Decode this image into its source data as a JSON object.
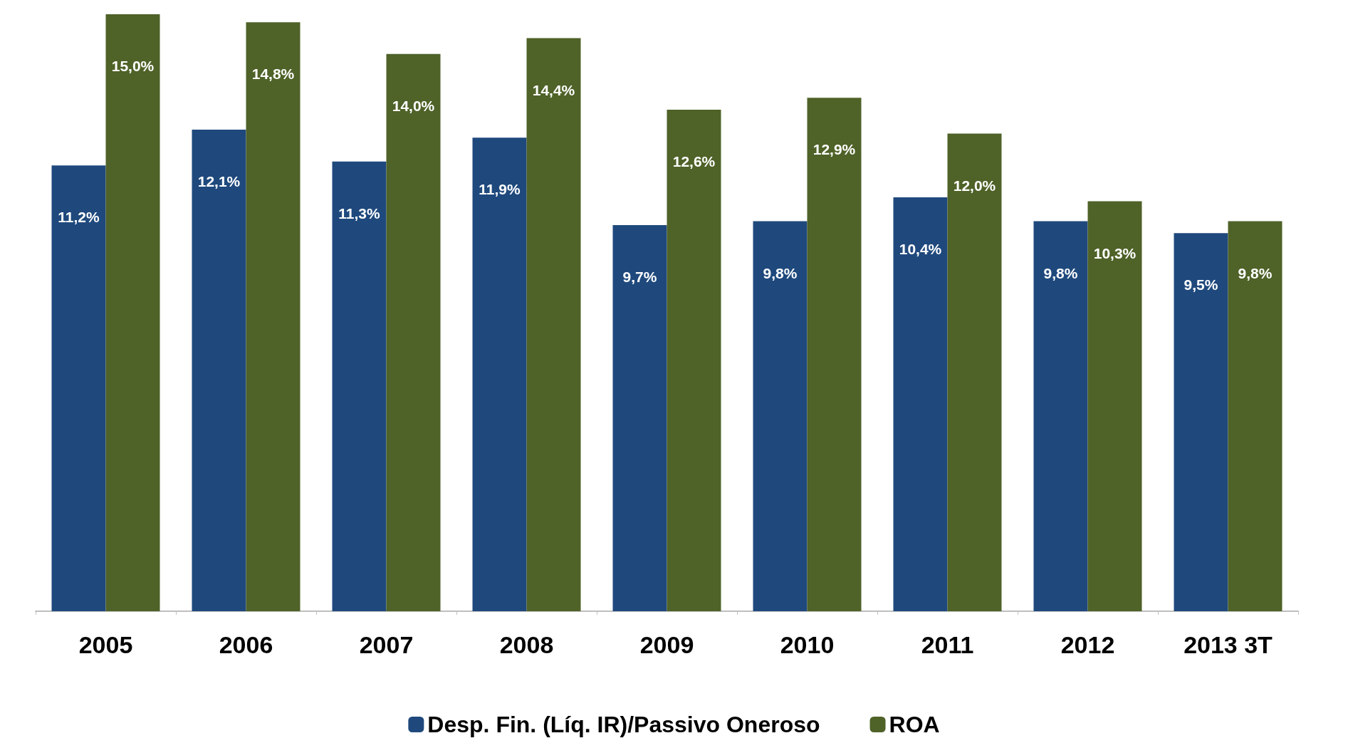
{
  "chart_data": {
    "type": "bar",
    "categories": [
      "2005",
      "2006",
      "2007",
      "2008",
      "2009",
      "2010",
      "2011",
      "2012",
      "2013 3T"
    ],
    "series": [
      {
        "name": "Desp. Fin. (Líq. IR)/Passivo Oneroso",
        "color": "#1f497d",
        "values": [
          11.2,
          12.1,
          11.3,
          11.9,
          9.7,
          9.8,
          10.4,
          9.8,
          9.5
        ],
        "value_labels": [
          "11,2%",
          "12,1%",
          "11,3%",
          "11,9%",
          "9,7%",
          "9,8%",
          "10,4%",
          "9,8%",
          "9,5%"
        ]
      },
      {
        "name": "ROA",
        "color": "#4f6228",
        "values": [
          15.0,
          14.8,
          14.0,
          14.4,
          12.6,
          12.9,
          12.0,
          10.3,
          9.8
        ],
        "value_labels": [
          "15,0%",
          "14,8%",
          "14,0%",
          "14,4%",
          "12,6%",
          "12,9%",
          "12,0%",
          "10,3%",
          "9,8%"
        ]
      }
    ],
    "legend": "bottom",
    "grid": false,
    "tick_labels": "x"
  }
}
